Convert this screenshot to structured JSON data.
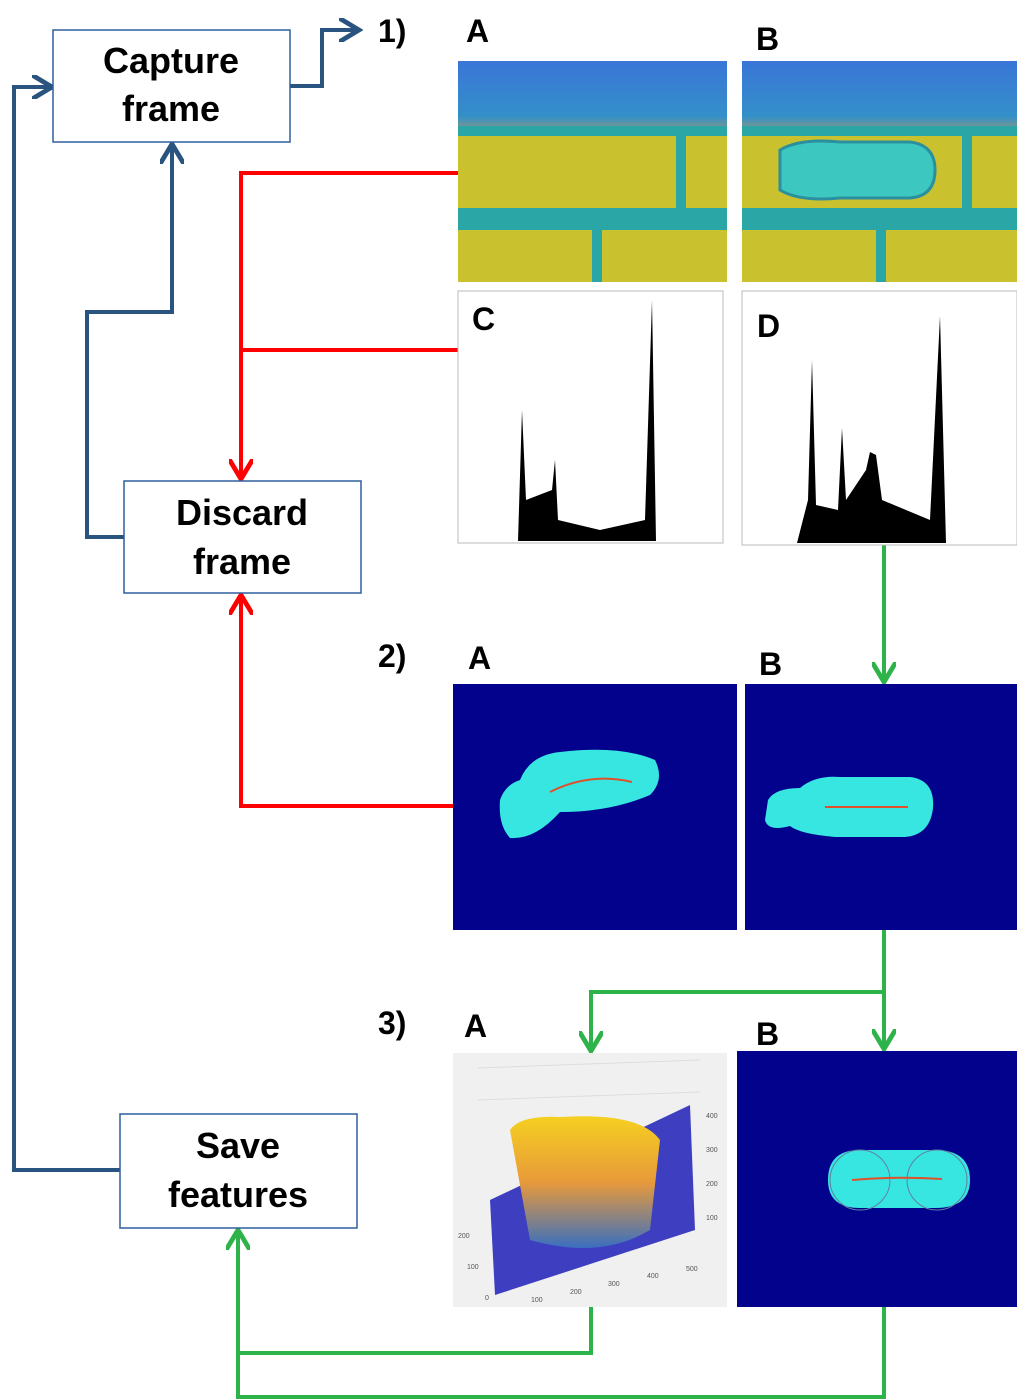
{
  "nodes": [
    {
      "lines": [
        "Capture",
        "frame"
      ]
    },
    {
      "lines": [
        "Discard",
        "frame"
      ]
    },
    {
      "lines": [
        "Save",
        "features"
      ]
    }
  ],
  "steps": [
    {
      "label": "1)",
      "panels": [
        "A",
        "B",
        "C",
        "D"
      ]
    },
    {
      "label": "2)",
      "panels": [
        "A",
        "B"
      ]
    },
    {
      "label": "3)",
      "panels": [
        "A",
        "B"
      ]
    }
  ],
  "plot3d": {
    "z_ticks": [
      "400",
      "300",
      "200",
      "100"
    ],
    "x_ticks": [
      "100",
      "200",
      "300",
      "400",
      "500"
    ],
    "y_ticks": [
      "200",
      "100",
      "0"
    ]
  }
}
